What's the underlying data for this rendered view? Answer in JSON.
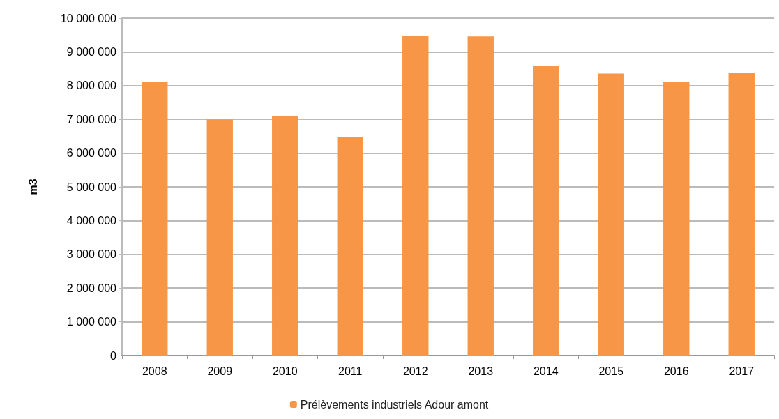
{
  "chart_data": {
    "type": "bar",
    "ylabel": "m3",
    "categories": [
      "2008",
      "2009",
      "2010",
      "2011",
      "2012",
      "2013",
      "2014",
      "2015",
      "2016",
      "2017"
    ],
    "series": [
      {
        "name": "Prélèvements industriels Adour amont",
        "color": "#f79646",
        "values": [
          8110000,
          7000000,
          7100000,
          6470000,
          9480000,
          9460000,
          8580000,
          8360000,
          8100000,
          8390000
        ]
      }
    ],
    "ylim": [
      0,
      10000000
    ],
    "yticks": [
      0,
      1000000,
      2000000,
      3000000,
      4000000,
      5000000,
      6000000,
      7000000,
      8000000,
      9000000,
      10000000
    ],
    "grid": "y",
    "legend": "bottom"
  }
}
